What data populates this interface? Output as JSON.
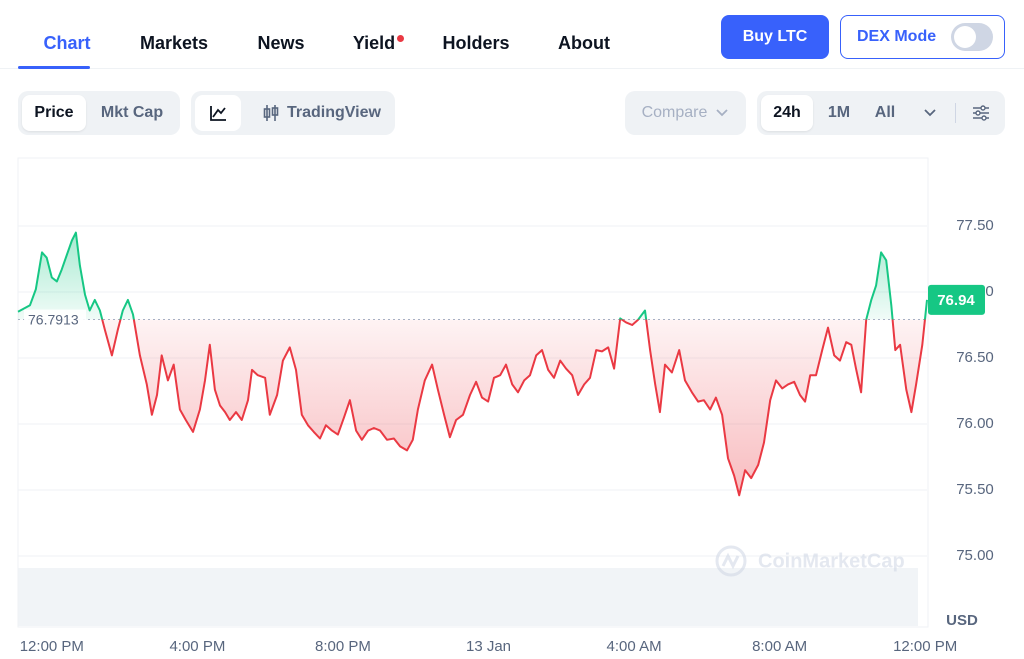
{
  "nav": {
    "tabs": [
      "Chart",
      "Markets",
      "News",
      "Yield",
      "Holders",
      "About"
    ],
    "buy_button": "Buy LTC",
    "dex_mode": "DEX Mode"
  },
  "toolbar": {
    "metrics": [
      "Price",
      "Mkt Cap"
    ],
    "chart_view": "TradingView",
    "compare": "Compare",
    "ranges": [
      "24h",
      "1M",
      "All"
    ]
  },
  "chart_data": {
    "type": "line",
    "unit_label": "USD",
    "watermark": "CoinMarketCap",
    "up_color": "#16c784",
    "down_color": "#ea3943",
    "grid": true,
    "reference_line": 76.7913,
    "current_price": 76.94,
    "xlim": [
      -0.93,
      24.05
    ],
    "xticks": [
      {
        "value": 0,
        "label": "12:00 PM"
      },
      {
        "value": 4,
        "label": "4:00 PM"
      },
      {
        "value": 8,
        "label": "8:00 PM"
      },
      {
        "value": 12,
        "label": "13 Jan"
      },
      {
        "value": 16,
        "label": "4:00 AM"
      },
      {
        "value": 20,
        "label": "8:00 AM"
      },
      {
        "value": 24,
        "label": "12:00 PM"
      }
    ],
    "ylim": [
      74.5,
      78.0
    ],
    "yticks": [
      {
        "value": 75,
        "label": "75.00"
      },
      {
        "value": 75.5,
        "label": "75.50"
      },
      {
        "value": 76,
        "label": "76.00"
      },
      {
        "value": 76.5,
        "label": "76.50"
      },
      {
        "value": 77,
        "label": "77.00"
      },
      {
        "value": 77.5,
        "label": "77.50"
      }
    ],
    "x": [
      -0.93,
      -0.6,
      -0.44,
      -0.27,
      -0.14,
      0,
      0.14,
      0.27,
      0.41,
      0.55,
      0.66,
      0.77,
      0.91,
      1.04,
      1.18,
      1.32,
      1.46,
      1.65,
      1.81,
      1.95,
      2.09,
      2.23,
      2.42,
      2.61,
      2.75,
      2.89,
      3.02,
      3.19,
      3.35,
      3.52,
      3.68,
      3.88,
      4.07,
      4.21,
      4.34,
      4.48,
      4.62,
      4.76,
      4.89,
      5.06,
      5.22,
      5.39,
      5.5,
      5.66,
      5.86,
      5.99,
      6.19,
      6.35,
      6.54,
      6.71,
      6.87,
      7.04,
      7.2,
      7.37,
      7.53,
      7.7,
      7.86,
      8.03,
      8.19,
      8.36,
      8.52,
      8.69,
      8.85,
      9.02,
      9.21,
      9.4,
      9.57,
      9.76,
      9.92,
      10.06,
      10.25,
      10.45,
      10.61,
      10.78,
      10.94,
      11.11,
      11.3,
      11.49,
      11.66,
      11.82,
      11.99,
      12.15,
      12.32,
      12.48,
      12.65,
      12.81,
      12.98,
      13.14,
      13.31,
      13.47,
      13.64,
      13.8,
      13.97,
      14.13,
      14.3,
      14.46,
      14.63,
      14.79,
      14.96,
      15.12,
      15.29,
      15.45,
      15.62,
      15.78,
      15.95,
      16.11,
      16.3,
      16.44,
      16.58,
      16.71,
      16.85,
      17.04,
      17.24,
      17.4,
      17.59,
      17.76,
      17.92,
      18.09,
      18.25,
      18.42,
      18.58,
      18.75,
      18.89,
      19.05,
      19.22,
      19.41,
      19.57,
      19.74,
      19.9,
      20.07,
      20.23,
      20.4,
      20.56,
      20.7,
      20.84,
      21,
      21.17,
      21.33,
      21.5,
      21.66,
      21.83,
      21.97,
      22.1,
      22.24,
      22.38,
      22.52,
      22.65,
      22.79,
      22.93,
      23.07,
      23.18,
      23.31,
      23.48,
      23.62,
      23.75,
      23.92,
      24.05
    ],
    "values": [
      76.85,
      76.9,
      77.02,
      77.3,
      77.26,
      77.11,
      77.08,
      77.17,
      77.28,
      77.39,
      77.45,
      77.2,
      76.98,
      76.86,
      76.94,
      76.86,
      76.71,
      76.52,
      76.71,
      76.86,
      76.94,
      76.83,
      76.52,
      76.3,
      76.07,
      76.22,
      76.52,
      76.33,
      76.45,
      76.11,
      76.03,
      75.94,
      76.11,
      76.33,
      76.6,
      76.26,
      76.14,
      76.09,
      76.03,
      76.09,
      76.03,
      76.18,
      76.41,
      76.37,
      76.35,
      76.07,
      76.22,
      76.48,
      76.58,
      76.41,
      76.07,
      75.99,
      75.94,
      75.89,
      75.99,
      75.95,
      75.92,
      76.05,
      76.18,
      75.95,
      75.88,
      75.95,
      75.97,
      75.95,
      75.88,
      75.89,
      75.83,
      75.8,
      75.88,
      76.11,
      76.33,
      76.45,
      76.26,
      76.07,
      75.9,
      76.03,
      76.07,
      76.22,
      76.32,
      76.2,
      76.17,
      76.35,
      76.37,
      76.45,
      76.3,
      76.24,
      76.33,
      76.37,
      76.52,
      76.56,
      76.41,
      76.35,
      76.48,
      76.42,
      76.37,
      76.22,
      76.3,
      76.35,
      76.56,
      76.55,
      76.58,
      76.42,
      76.8,
      76.77,
      76.75,
      76.79,
      76.86,
      76.56,
      76.3,
      76.09,
      76.45,
      76.39,
      76.56,
      76.33,
      76.24,
      76.17,
      76.18,
      76.11,
      76.2,
      76.07,
      75.74,
      75.61,
      75.46,
      75.65,
      75.59,
      75.69,
      75.86,
      76.18,
      76.33,
      76.27,
      76.3,
      76.32,
      76.22,
      76.17,
      76.37,
      76.37,
      76.56,
      76.73,
      76.52,
      76.48,
      76.62,
      76.6,
      76.42,
      76.24,
      76.79,
      76.94,
      77.05,
      77.3,
      77.24,
      76.9,
      76.56,
      76.6,
      76.26,
      76.09,
      76.3,
      76.6,
      76.94
    ]
  }
}
